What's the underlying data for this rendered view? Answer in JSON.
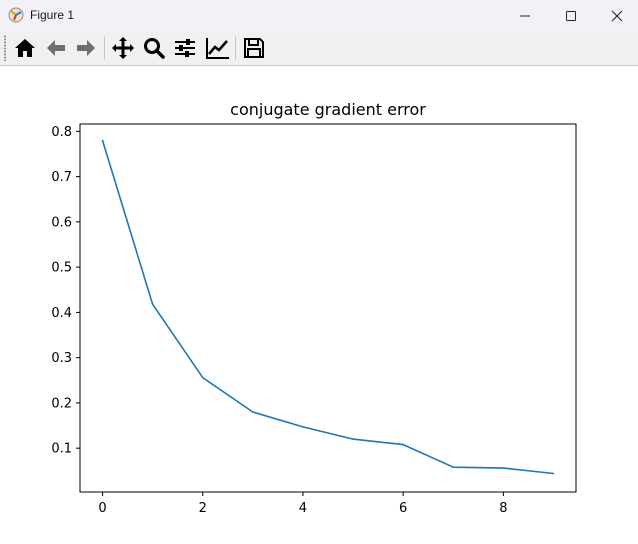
{
  "window": {
    "title": "Figure 1",
    "app_icon": "matplotlib-icon",
    "controls": [
      "minimize-icon",
      "maximize-icon",
      "close-icon"
    ]
  },
  "toolbar": {
    "buttons": [
      {
        "name": "home",
        "icon": "home-icon"
      },
      {
        "name": "back",
        "icon": "arrow-left-icon"
      },
      {
        "name": "forward",
        "icon": "arrow-right-icon"
      },
      {
        "name": "pan",
        "icon": "move-icon"
      },
      {
        "name": "zoom",
        "icon": "magnifier-icon"
      },
      {
        "name": "subplots",
        "icon": "sliders-icon"
      },
      {
        "name": "customize",
        "icon": "chart-line-icon"
      },
      {
        "name": "save",
        "icon": "floppy-disk-icon"
      }
    ]
  },
  "colors": {
    "line": "#1f77b4",
    "titlebar": "#f3f1f7",
    "toolbar": "#f0f0f0"
  },
  "chart_data": {
    "type": "line",
    "title": "conjugate gradient error",
    "xlabel": "",
    "ylabel": "",
    "x": [
      0,
      1,
      2,
      3,
      4,
      5,
      6,
      7,
      8,
      9
    ],
    "series": [
      {
        "values": [
          0.78,
          0.418,
          0.256,
          0.18,
          0.147,
          0.12,
          0.108,
          0.058,
          0.056,
          0.044
        ]
      }
    ],
    "xticks": [
      0,
      2,
      4,
      6,
      8
    ],
    "xtick_labels": [
      "0",
      "2",
      "4",
      "6",
      "8"
    ],
    "yticks": [
      0.1,
      0.2,
      0.3,
      0.4,
      0.5,
      0.6,
      0.7,
      0.8
    ],
    "ytick_labels": [
      "0.1",
      "0.2",
      "0.3",
      "0.4",
      "0.5",
      "0.6",
      "0.7",
      "0.8"
    ],
    "xlim": [
      -0.45,
      9.45
    ],
    "ylim": [
      0.0032,
      0.8162
    ],
    "grid": false,
    "legend": "none"
  }
}
